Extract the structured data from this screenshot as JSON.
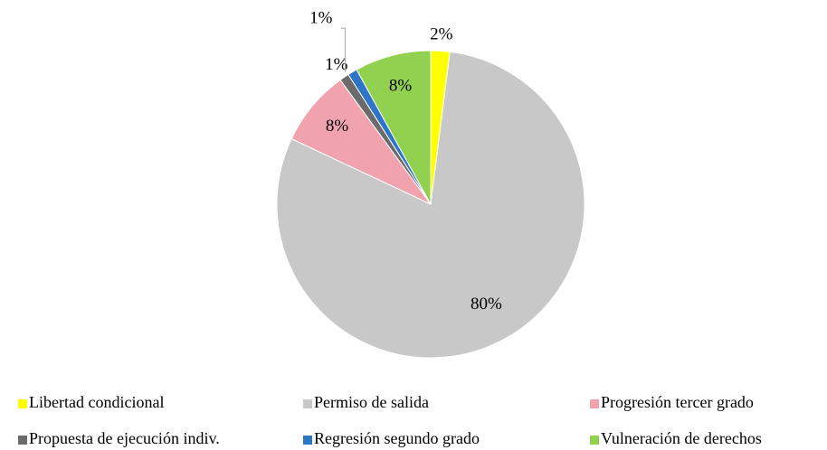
{
  "chart_data": {
    "type": "pie",
    "categories": [
      "Libertad condicional",
      "Permiso de salida",
      "Progresión tercer grado",
      "Propuesta de ejecución indiv.",
      "Regresión segundo grado",
      "Vulneración de derechos"
    ],
    "values": [
      2,
      80,
      8,
      1,
      1,
      8
    ],
    "value_labels": [
      "2%",
      "80%",
      "8%",
      "1%",
      "1%",
      "8%"
    ],
    "colors": [
      "#ffff00",
      "#c8c8c8",
      "#f0a3ae",
      "#6b6b6b",
      "#2e75c8",
      "#92d050"
    ],
    "legend": "bottom"
  }
}
